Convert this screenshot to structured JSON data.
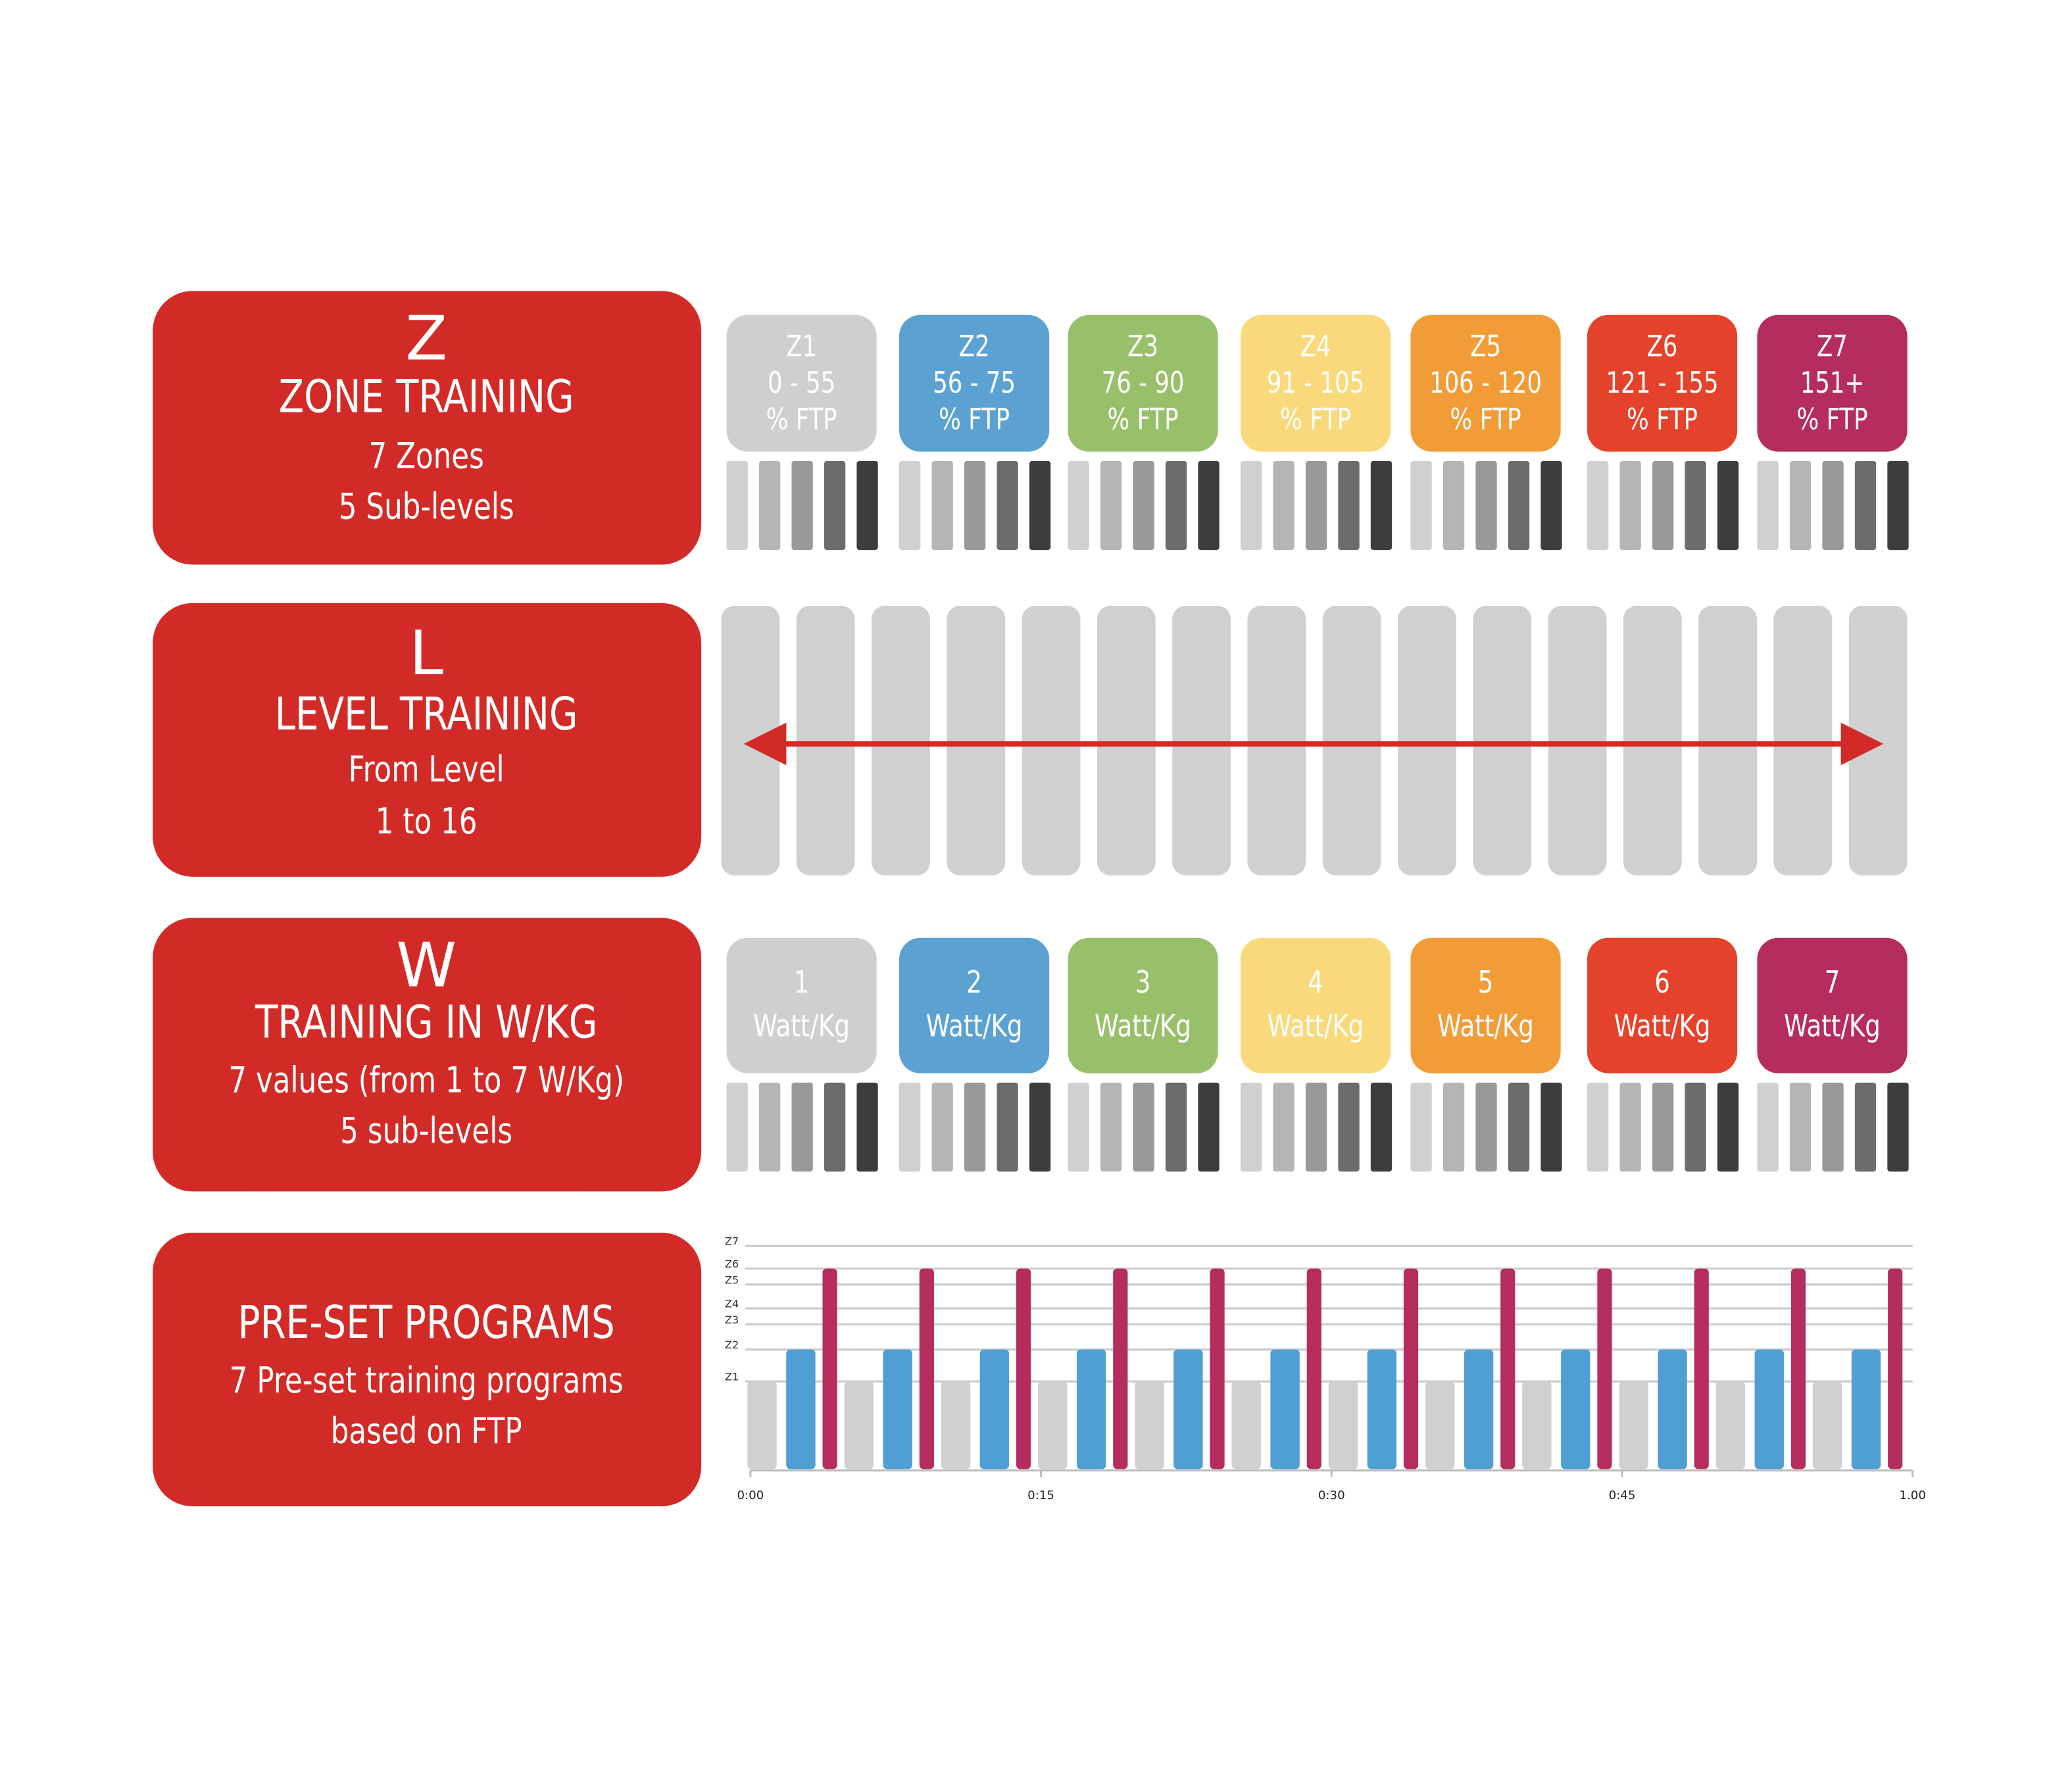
{
  "sections": [
    {
      "letter": "Z",
      "title": "ZONE TRAINING",
      "lines": [
        "7 Zones",
        "5 Sub-levels"
      ]
    },
    {
      "letter": "L",
      "title": "LEVEL TRAINING",
      "lines": [
        "From Level",
        "1 to 16"
      ]
    },
    {
      "letter": "W",
      "title": "TRAINING IN W/KG",
      "lines": [
        "7 values (from 1 to 7 W/Kg)",
        "5 sub-levels"
      ]
    },
    {
      "title": "PRE-SET PROGRAMS",
      "lines": [
        "7 Pre-set training programs",
        "based on FTP"
      ]
    }
  ],
  "zones": [
    {
      "name": "Z1",
      "range": "0 - 55",
      "unit": "% FTP",
      "color": "#cfcfcf"
    },
    {
      "name": "Z2",
      "range": "56 - 75",
      "unit": "% FTP",
      "color": "#5ba2d3"
    },
    {
      "name": "Z3",
      "range": "76 - 90",
      "unit": "% FTP",
      "color": "#98c06a"
    },
    {
      "name": "Z4",
      "range": "91 - 105",
      "unit": "% FTP",
      "color": "#f9d97b"
    },
    {
      "name": "Z5",
      "range": "106 - 120",
      "unit": "% FTP",
      "color": "#f29c38"
    },
    {
      "name": "Z6",
      "range": "121 - 155",
      "unit": "% FTP",
      "color": "#e4422b"
    },
    {
      "name": "Z7",
      "range": "151+",
      "unit": "% FTP",
      "color": "#b52d5e"
    }
  ],
  "wkg": [
    {
      "value": "1",
      "unit": "Watt/Kg"
    },
    {
      "value": "2",
      "unit": "Watt/Kg"
    },
    {
      "value": "3",
      "unit": "Watt/Kg"
    },
    {
      "value": "4",
      "unit": "Watt/Kg"
    },
    {
      "value": "5",
      "unit": "Watt/Kg"
    },
    {
      "value": "6",
      "unit": "Watt/Kg"
    },
    {
      "value": "7",
      "unit": "Watt/Kg"
    }
  ],
  "chart_data": {
    "type": "bar",
    "xlim": [
      0,
      60
    ],
    "xticks": [
      {
        "value": 0,
        "label": "0:00"
      },
      {
        "value": 15,
        "label": "0:15"
      },
      {
        "value": 30,
        "label": "0:30"
      },
      {
        "value": 45,
        "label": "0:45"
      },
      {
        "value": 60,
        "label": "1.00"
      }
    ],
    "ylim": [
      0,
      7
    ],
    "yticks": [
      {
        "value": 2.75,
        "label": "Z1"
      },
      {
        "value": 3.75,
        "label": "Z2"
      },
      {
        "value": 4.54,
        "label": "Z3"
      },
      {
        "value": 5.04,
        "label": "Z4"
      },
      {
        "value": 5.79,
        "label": "Z5"
      },
      {
        "value": 6.29,
        "label": "Z6"
      },
      {
        "value": 7,
        "label": "Z7"
      }
    ],
    "grid": true,
    "series": [
      {
        "color": "#d0d0d0",
        "x": [
          0.6,
          5.6,
          10.6,
          15.6,
          20.6,
          25.6,
          30.6,
          35.6,
          40.6,
          45.6,
          50.6,
          55.6
        ],
        "values": [
          2.75,
          2.75,
          2.75,
          2.75,
          2.75,
          2.75,
          2.75,
          2.75,
          2.75,
          2.75,
          2.75,
          2.75
        ]
      },
      {
        "color": "#4f9fd4",
        "x": [
          2.6,
          7.6,
          12.6,
          17.6,
          22.6,
          27.6,
          32.6,
          37.6,
          42.6,
          47.6,
          52.6,
          57.6
        ],
        "values": [
          3.75,
          3.75,
          3.75,
          3.75,
          3.75,
          3.75,
          3.75,
          3.75,
          3.75,
          3.75,
          3.75,
          3.75
        ]
      },
      {
        "color": "#b52d5e",
        "x": [
          4.1,
          9.1,
          14.1,
          19.1,
          24.1,
          29.1,
          34.1,
          39.1,
          44.1,
          49.1,
          54.1,
          59.1
        ],
        "values": [
          6.29,
          6.29,
          6.29,
          6.29,
          6.29,
          6.29,
          6.29,
          6.29,
          6.29,
          6.29,
          6.29,
          6.29
        ]
      }
    ]
  }
}
